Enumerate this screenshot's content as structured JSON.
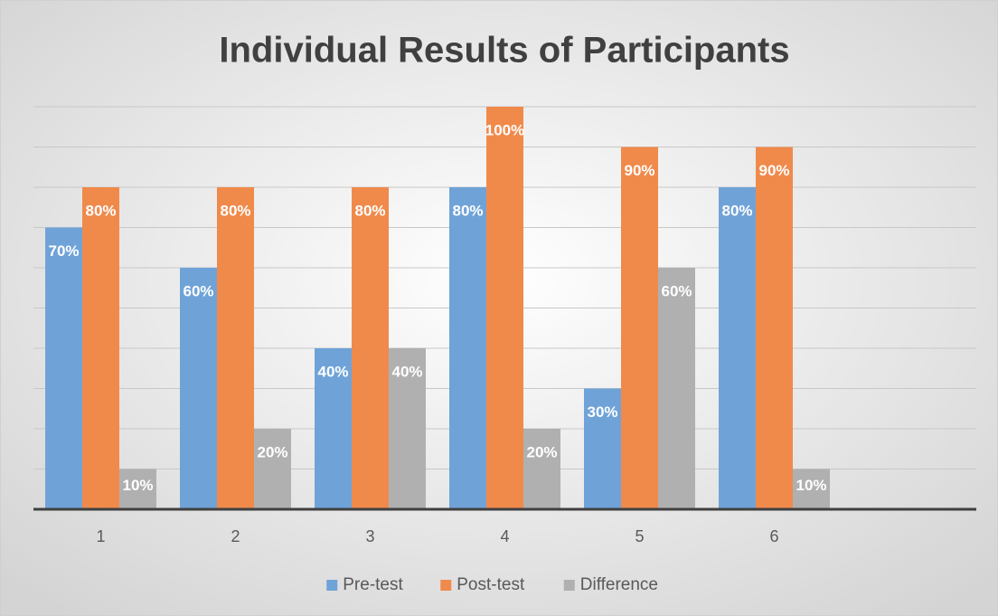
{
  "chart_data": {
    "type": "bar",
    "title": "Individual Results of Participants",
    "categories": [
      "1",
      "2",
      "3",
      "4",
      "5",
      "6",
      null
    ],
    "series": [
      {
        "name": "Pre-test",
        "color": "#6fa3d8",
        "values": [
          70,
          60,
          40,
          80,
          30,
          80,
          null
        ],
        "value_labels": [
          "70%",
          "60%",
          "40%",
          "80%",
          "30%",
          "80%",
          null
        ]
      },
      {
        "name": "Post-test",
        "color": "#f08a4b",
        "values": [
          80,
          80,
          80,
          100,
          90,
          90,
          null
        ],
        "value_labels": [
          "80%",
          "80%",
          "80%",
          "100%",
          "90%",
          "90%",
          null
        ]
      },
      {
        "name": "Difference",
        "color": "#b0b0b0",
        "values": [
          10,
          20,
          40,
          20,
          60,
          10,
          null
        ],
        "value_labels": [
          "10%",
          "20%",
          "40%",
          "20%",
          "60%",
          "10%",
          null
        ]
      }
    ],
    "ylim": [
      0,
      100
    ],
    "yticks": [
      0,
      10,
      20,
      30,
      40,
      50,
      60,
      70,
      80,
      90,
      100
    ],
    "grid": true,
    "legend": "bottom"
  }
}
